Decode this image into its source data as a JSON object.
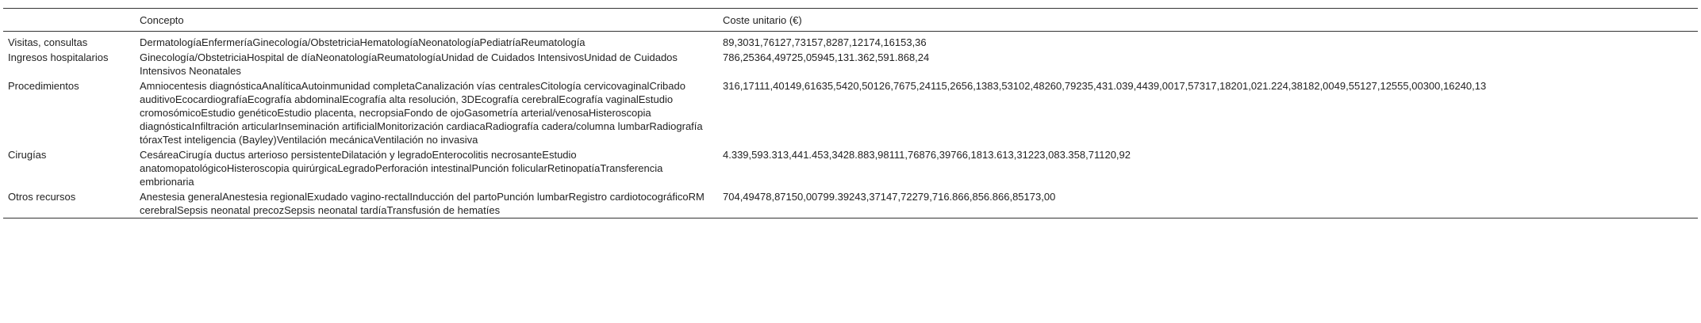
{
  "table": {
    "headers": [
      "",
      "Concepto",
      "Coste unitario (€)"
    ],
    "rows": [
      {
        "category": "Visitas, consultas",
        "concepts": [
          "Dermatología",
          "Enfermería",
          "Ginecología/Obstetricia",
          "Hematología",
          "Neonatología",
          "Pediatría",
          "Reumatología"
        ],
        "cost": "89,3031,76127,73157,8287,12174,16153,36"
      },
      {
        "category": "Ingresos hospitalarios",
        "concepts": [
          "Ginecología/Obstetricia",
          "Hospital de día",
          "Neonatología",
          "Reumatología",
          "Unidad de Cuidados Intensivos",
          "Unidad de Cuidados Intensivos Neonatales"
        ],
        "cost": "786,25364,49725,05945,131.362,591.868,24"
      },
      {
        "category": "Procedimientos",
        "concepts": [
          "Amniocentesis diagnóstica",
          "Analítica",
          "Autoinmunidad completa",
          "Canalización vías centrales",
          "Citología cervicovaginal",
          "Cribado auditivo",
          "Ecocardiografía",
          "Ecografía abdominal",
          "Ecografía alta resolución, 3D",
          "Ecografía cerebral",
          "Ecografía vaginal",
          "Estudio cromosómico",
          "Estudio genético",
          "Estudio placenta, necropsia",
          "Fondo de ojo",
          "Gasometría arterial/venosa",
          "Histeroscopia diagnóstica",
          "Infiltración articular",
          "Inseminación artificial",
          "Monitorización cardiaca",
          "Radiografía cadera/columna lumbar",
          "Radiografía tórax",
          "Test inteligencia (Bayley)",
          "Ventilación mecánica",
          "Ventilación no invasiva"
        ],
        "cost": "316,17111,40149,61635,5420,50126,7675,24115,2656,1383,53102,48260,79235,431.039,4439,0017,57317,18201,021.224,38182,0049,55127,12555,00300,16240,13"
      },
      {
        "category": "Cirugías",
        "concepts": [
          "Cesárea",
          "Cirugía ductus arterioso persistente",
          "Dilatación y legrado",
          "Enterocolitis necrosante",
          "Estudio anatomopatológico",
          "Histeroscopia quirúrgica",
          "Legrado",
          "Perforación intestinal",
          "Punción folicular",
          "Retinopatía",
          "Transferencia embrionaria"
        ],
        "cost": "4.339,593.313,441.453,3428.883,98111,76876,39766,1813.613,31223,083.358,71120,92"
      },
      {
        "category": "Otros recursos",
        "concepts": [
          "Anestesia general",
          "Anestesia regional",
          "Exudado vagino-rectal",
          "Inducción del parto",
          "Punción lumbar",
          "Registro cardiotocográfico",
          "RM cerebral",
          "Sepsis neonatal precoz",
          "Sepsis neonatal tardía",
          "Transfusión de hematíes"
        ],
        "cost": "704,49478,87150,00799.39243,37147,72279,716.866,856.866,85173,00"
      }
    ]
  }
}
